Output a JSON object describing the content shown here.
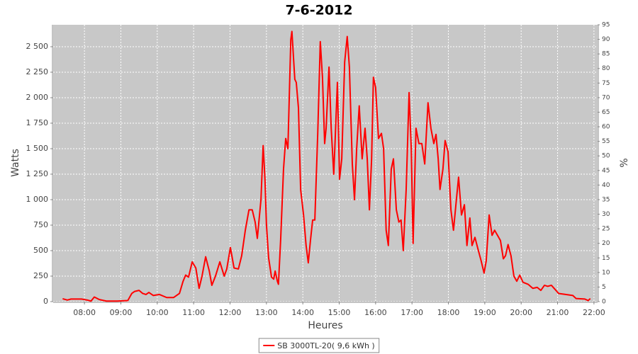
{
  "chart_data": {
    "type": "line",
    "title": "7-6-2012",
    "x_label": "Heures",
    "y_label": "Watts",
    "y2_label": "%",
    "grid": true,
    "legend": "bottom",
    "xlim": [
      7.14,
      22.1
    ],
    "xticks": [
      {
        "value": 8,
        "label": "08:00"
      },
      {
        "value": 9,
        "label": "09:00"
      },
      {
        "value": 10,
        "label": "10:00"
      },
      {
        "value": 11,
        "label": "11:00"
      },
      {
        "value": 12,
        "label": "12:00"
      },
      {
        "value": 13,
        "label": "13:00"
      },
      {
        "value": 14,
        "label": "14:00"
      },
      {
        "value": 15,
        "label": "15:00"
      },
      {
        "value": 16,
        "label": "16:00"
      },
      {
        "value": 17,
        "label": "17:00"
      },
      {
        "value": 18,
        "label": "18:00"
      },
      {
        "value": 19,
        "label": "19:00"
      },
      {
        "value": 20,
        "label": "20:00"
      },
      {
        "value": 21,
        "label": "21:00"
      },
      {
        "value": 22,
        "label": "22:00"
      }
    ],
    "ylim": [
      0,
      2715
    ],
    "yticks": [
      0,
      250,
      500,
      750,
      {
        "value": 1000,
        "label": "1 000"
      },
      {
        "value": 1250,
        "label": "1 250"
      },
      {
        "value": 1500,
        "label": "1 500"
      },
      {
        "value": 1750,
        "label": "1 750"
      },
      {
        "value": 2000,
        "label": "2 000"
      },
      {
        "value": 2250,
        "label": "2 250"
      },
      {
        "value": 2500,
        "label": "2 500"
      }
    ],
    "y2lim": [
      0,
      95
    ],
    "y2ticks": [
      0,
      5,
      10,
      15,
      20,
      25,
      30,
      35,
      40,
      45,
      50,
      55,
      60,
      65,
      70,
      75,
      80,
      85,
      90,
      95
    ],
    "x": [
      7.4,
      7.53,
      7.63,
      7.92,
      8.08,
      8.18,
      8.27,
      8.41,
      8.6,
      8.9,
      9.19,
      9.3,
      9.38,
      9.5,
      9.6,
      9.69,
      9.77,
      9.89,
      10.06,
      10.26,
      10.45,
      10.61,
      10.71,
      10.78,
      10.86,
      10.96,
      11.06,
      11.15,
      11.23,
      11.33,
      11.43,
      11.5,
      11.6,
      11.72,
      11.84,
      11.91,
      12.01,
      12.11,
      12.23,
      12.32,
      12.42,
      12.52,
      12.61,
      12.69,
      12.75,
      12.85,
      12.91,
      12.96,
      13.0,
      13.06,
      13.14,
      13.2,
      13.24,
      13.3,
      13.33,
      13.39,
      13.47,
      13.53,
      13.59,
      13.67,
      13.7,
      13.78,
      13.82,
      13.88,
      13.94,
      14.02,
      14.09,
      14.15,
      14.21,
      14.27,
      14.33,
      14.41,
      14.48,
      14.54,
      14.6,
      14.64,
      14.72,
      14.78,
      14.85,
      14.89,
      14.95,
      15.01,
      15.07,
      15.15,
      15.22,
      15.28,
      15.36,
      15.42,
      15.48,
      15.55,
      15.63,
      15.71,
      15.77,
      15.83,
      15.89,
      15.94,
      16.0,
      16.08,
      16.16,
      16.22,
      16.29,
      16.35,
      16.43,
      16.49,
      16.57,
      16.64,
      16.7,
      16.76,
      16.84,
      16.92,
      16.98,
      17.03,
      17.11,
      17.19,
      17.27,
      17.35,
      17.44,
      17.52,
      17.6,
      17.66,
      17.72,
      17.77,
      17.85,
      17.91,
      17.99,
      18.07,
      18.14,
      18.22,
      18.28,
      18.36,
      18.44,
      18.51,
      18.59,
      18.65,
      18.73,
      18.81,
      18.9,
      18.98,
      19.04,
      19.12,
      19.2,
      19.27,
      19.35,
      19.43,
      19.51,
      19.57,
      19.64,
      19.72,
      19.8,
      19.88,
      19.96,
      20.05,
      20.19,
      20.32,
      20.44,
      20.54,
      20.64,
      20.73,
      20.83,
      20.93,
      21.03,
      21.22,
      21.42,
      21.51,
      21.75,
      21.84,
      21.9
    ],
    "series": [
      {
        "name": "SB 3000TL-20( 9,6 kWh )",
        "color": "#ff0000",
        "values": [
          28,
          15,
          25,
          25,
          15,
          5,
          45,
          20,
          5,
          5,
          10,
          80,
          100,
          110,
          80,
          70,
          90,
          60,
          70,
          40,
          40,
          80,
          200,
          260,
          240,
          390,
          330,
          130,
          250,
          440,
          300,
          160,
          250,
          390,
          250,
          320,
          530,
          330,
          320,
          450,
          700,
          900,
          900,
          780,
          620,
          1000,
          1530,
          1200,
          760,
          430,
          240,
          220,
          300,
          200,
          170,
          600,
          1300,
          1600,
          1500,
          2570,
          2650,
          2180,
          2150,
          1900,
          1100,
          850,
          550,
          380,
          600,
          800,
          800,
          1650,
          2550,
          2200,
          1550,
          1700,
          2300,
          1700,
          1250,
          1600,
          2150,
          1200,
          1400,
          2350,
          2600,
          2300,
          1350,
          1000,
          1500,
          1920,
          1400,
          1700,
          1400,
          900,
          1400,
          2200,
          2100,
          1600,
          1650,
          1500,
          700,
          550,
          1300,
          1400,
          900,
          780,
          800,
          500,
          1100,
          2050,
          1500,
          570,
          1700,
          1550,
          1550,
          1350,
          1950,
          1700,
          1550,
          1640,
          1400,
          1100,
          1300,
          1580,
          1470,
          900,
          700,
          1000,
          1220,
          850,
          950,
          550,
          820,
          550,
          630,
          520,
          400,
          280,
          400,
          850,
          650,
          700,
          650,
          600,
          420,
          450,
          560,
          450,
          250,
          200,
          260,
          190,
          170,
          130,
          140,
          110,
          160,
          150,
          160,
          120,
          80,
          70,
          60,
          30,
          25,
          10,
          30
        ]
      }
    ]
  }
}
